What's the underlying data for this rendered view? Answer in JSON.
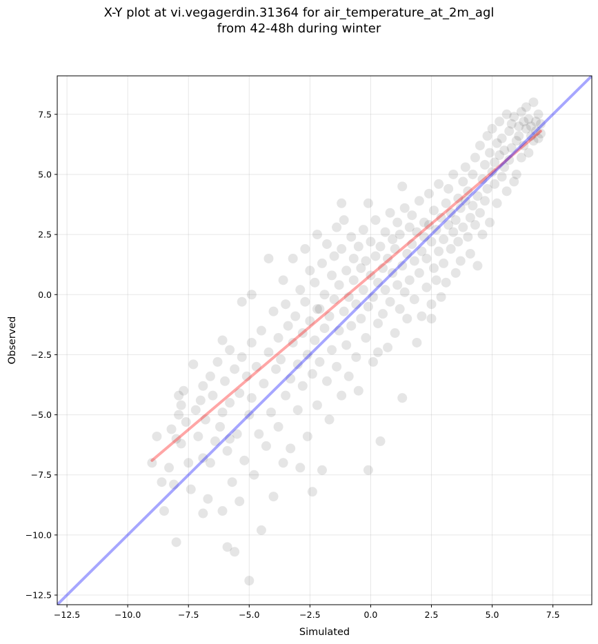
{
  "chart_data": {
    "type": "scatter",
    "title": "X-Y plot at vi.vegagerdin.31364 for air_temperature_at_2m_agl",
    "subtitle": "from 42-48h during winter",
    "xlabel": "Simulated",
    "ylabel": "Observed",
    "xlim": [
      -12.9,
      9.1
    ],
    "ylim": [
      -12.9,
      9.1
    ],
    "grid": true,
    "x_ticks": [
      -12.5,
      -10.0,
      -7.5,
      -5.0,
      -2.5,
      0.0,
      2.5,
      5.0,
      7.5
    ],
    "y_ticks": [
      -12.5,
      -10.0,
      -7.5,
      -5.0,
      -2.5,
      0.0,
      2.5,
      5.0,
      7.5
    ],
    "x_tick_labels": [
      "−12.5",
      "−10.0",
      "−7.5",
      "−5.0",
      "−2.5",
      "0.0",
      "2.5",
      "5.0",
      "7.5"
    ],
    "y_tick_labels": [
      "−12.5",
      "−10.0",
      "−7.5",
      "−5.0",
      "−2.5",
      "0.0",
      "2.5",
      "5.0",
      "7.5"
    ],
    "series": [
      {
        "kind": "scatter",
        "color": "#000000",
        "opacity": 0.1,
        "points": [
          [
            -9.0,
            -7.0
          ],
          [
            -8.8,
            -5.9
          ],
          [
            -8.6,
            -7.8
          ],
          [
            -8.5,
            -9.0
          ],
          [
            -8.3,
            -7.2
          ],
          [
            -8.2,
            -5.6
          ],
          [
            -8.1,
            -7.9
          ],
          [
            -8.0,
            -10.3
          ],
          [
            -8.0,
            -6.0
          ],
          [
            -7.9,
            -5.0
          ],
          [
            -7.8,
            -4.6
          ],
          [
            -7.8,
            -6.2
          ],
          [
            -7.7,
            -4.0
          ],
          [
            -7.6,
            -5.3
          ],
          [
            -7.5,
            -7.0
          ],
          [
            -7.4,
            -8.1
          ],
          [
            -7.3,
            -2.9
          ],
          [
            -7.2,
            -4.8
          ],
          [
            -7.1,
            -5.9
          ],
          [
            -7.0,
            -4.4
          ],
          [
            -6.9,
            -6.8
          ],
          [
            -6.9,
            -3.8
          ],
          [
            -6.8,
            -5.2
          ],
          [
            -6.7,
            -8.5
          ],
          [
            -6.6,
            -7.0
          ],
          [
            -6.6,
            -3.4
          ],
          [
            -6.5,
            -4.2
          ],
          [
            -6.4,
            -6.1
          ],
          [
            -6.3,
            -2.8
          ],
          [
            -6.2,
            -5.5
          ],
          [
            -6.1,
            -9.0
          ],
          [
            -6.1,
            -4.9
          ],
          [
            -6.0,
            -3.6
          ],
          [
            -5.9,
            -6.5
          ],
          [
            -5.8,
            -2.3
          ],
          [
            -5.8,
            -4.5
          ],
          [
            -5.7,
            -7.8
          ],
          [
            -5.6,
            -10.7
          ],
          [
            -5.6,
            -3.1
          ],
          [
            -5.5,
            -5.8
          ],
          [
            -5.4,
            -4.1
          ],
          [
            -5.4,
            -8.6
          ],
          [
            -5.3,
            -2.6
          ],
          [
            -5.2,
            -6.9
          ],
          [
            -5.1,
            -3.4
          ],
          [
            -5.0,
            -11.9
          ],
          [
            -5.0,
            -5.0
          ],
          [
            -4.9,
            -2.0
          ],
          [
            -4.9,
            -4.3
          ],
          [
            -4.8,
            -7.5
          ],
          [
            -4.7,
            -3.0
          ],
          [
            -4.6,
            -5.8
          ],
          [
            -4.5,
            -1.5
          ],
          [
            -4.5,
            -9.8
          ],
          [
            -4.4,
            -3.7
          ],
          [
            -4.3,
            -6.3
          ],
          [
            -4.2,
            -2.4
          ],
          [
            -4.1,
            -4.9
          ],
          [
            -4.0,
            -0.7
          ],
          [
            -4.0,
            -8.4
          ],
          [
            -3.9,
            -3.1
          ],
          [
            -3.8,
            -1.8
          ],
          [
            -3.8,
            -5.5
          ],
          [
            -3.7,
            -2.7
          ],
          [
            -3.6,
            -7.0
          ],
          [
            -3.5,
            -0.4
          ],
          [
            -3.5,
            -4.2
          ],
          [
            -3.4,
            -1.3
          ],
          [
            -3.3,
            -3.5
          ],
          [
            -3.3,
            -6.4
          ],
          [
            -3.2,
            1.5
          ],
          [
            -3.2,
            -2.0
          ],
          [
            -3.1,
            -0.9
          ],
          [
            -3.0,
            -4.8
          ],
          [
            -3.0,
            -2.9
          ],
          [
            -2.9,
            0.2
          ],
          [
            -2.9,
            -7.2
          ],
          [
            -2.8,
            -1.6
          ],
          [
            -2.8,
            -3.8
          ],
          [
            -2.7,
            1.9
          ],
          [
            -2.7,
            -0.3
          ],
          [
            -2.6,
            -2.5
          ],
          [
            -2.6,
            -5.9
          ],
          [
            -2.5,
            -1.1
          ],
          [
            -2.5,
            1.0
          ],
          [
            -2.4,
            -3.3
          ],
          [
            -2.4,
            -8.2
          ],
          [
            -2.3,
            0.5
          ],
          [
            -2.3,
            -1.9
          ],
          [
            -2.2,
            -4.6
          ],
          [
            -2.2,
            2.5
          ],
          [
            -2.1,
            -0.6
          ],
          [
            -2.1,
            -2.8
          ],
          [
            -2.0,
            1.3
          ],
          [
            -2.0,
            -7.3
          ],
          [
            -1.9,
            -1.4
          ],
          [
            -1.9,
            0.0
          ],
          [
            -1.8,
            -3.6
          ],
          [
            -1.8,
            2.1
          ],
          [
            -1.7,
            -0.9
          ],
          [
            -1.7,
            -5.2
          ],
          [
            -1.6,
            0.8
          ],
          [
            -1.6,
            -2.3
          ],
          [
            -1.5,
            1.6
          ],
          [
            -1.5,
            -0.2
          ],
          [
            -1.4,
            -3.0
          ],
          [
            -1.4,
            2.8
          ],
          [
            -1.3,
            -1.5
          ],
          [
            -1.3,
            0.4
          ],
          [
            -1.2,
            -4.2
          ],
          [
            -1.2,
            1.9
          ],
          [
            -1.1,
            -0.7
          ],
          [
            -1.1,
            3.1
          ],
          [
            -1.0,
            -2.1
          ],
          [
            -1.0,
            1.0
          ],
          [
            -0.9,
            -0.1
          ],
          [
            -0.9,
            -3.4
          ],
          [
            -0.8,
            2.4
          ],
          [
            -0.8,
            -1.3
          ],
          [
            -0.7,
            0.6
          ],
          [
            -0.7,
            1.5
          ],
          [
            -0.6,
            -2.6
          ],
          [
            -0.6,
            -0.4
          ],
          [
            -0.5,
            2.0
          ],
          [
            -0.5,
            -4.0
          ],
          [
            -0.4,
            1.1
          ],
          [
            -0.4,
            -1.0
          ],
          [
            -0.3,
            0.2
          ],
          [
            -0.3,
            2.7
          ],
          [
            -0.2,
            -1.8
          ],
          [
            -0.2,
            1.4
          ],
          [
            -0.1,
            -0.5
          ],
          [
            -0.1,
            -7.3
          ],
          [
            0.0,
            0.8
          ],
          [
            0.0,
            2.2
          ],
          [
            0.1,
            -2.8
          ],
          [
            0.1,
            -0.1
          ],
          [
            0.2,
            1.6
          ],
          [
            0.2,
            3.1
          ],
          [
            0.3,
            -1.2
          ],
          [
            0.3,
            0.5
          ],
          [
            0.4,
            2.0
          ],
          [
            0.4,
            -6.1
          ],
          [
            0.5,
            1.1
          ],
          [
            0.5,
            -0.8
          ],
          [
            0.6,
            2.6
          ],
          [
            0.6,
            0.2
          ],
          [
            0.7,
            -2.2
          ],
          [
            0.7,
            1.5
          ],
          [
            0.8,
            3.4
          ],
          [
            0.8,
            -0.3
          ],
          [
            0.9,
            0.9
          ],
          [
            0.9,
            2.3
          ],
          [
            1.0,
            -1.6
          ],
          [
            1.0,
            1.9
          ],
          [
            1.1,
            0.4
          ],
          [
            1.1,
            3.0
          ],
          [
            1.2,
            -0.6
          ],
          [
            1.2,
            2.5
          ],
          [
            1.3,
            1.2
          ],
          [
            1.3,
            -4.3
          ],
          [
            1.4,
            0.1
          ],
          [
            1.4,
            3.6
          ],
          [
            1.5,
            1.7
          ],
          [
            1.5,
            -1.0
          ],
          [
            1.6,
            2.8
          ],
          [
            1.6,
            0.6
          ],
          [
            1.7,
            2.1
          ],
          [
            1.7,
            3.3
          ],
          [
            1.8,
            -0.2
          ],
          [
            1.8,
            1.4
          ],
          [
            1.9,
            2.6
          ],
          [
            1.9,
            -2.0
          ],
          [
            2.0,
            0.9
          ],
          [
            2.0,
            3.9
          ],
          [
            2.1,
            1.8
          ],
          [
            2.1,
            -0.9
          ],
          [
            2.2,
            2.4
          ],
          [
            2.2,
            3.0
          ],
          [
            2.3,
            0.3
          ],
          [
            2.3,
            1.5
          ],
          [
            2.4,
            2.9
          ],
          [
            2.4,
            4.2
          ],
          [
            2.5,
            -0.4
          ],
          [
            2.5,
            2.2
          ],
          [
            2.6,
            1.1
          ],
          [
            2.6,
            3.5
          ],
          [
            2.7,
            0.6
          ],
          [
            2.7,
            2.7
          ],
          [
            2.8,
            1.8
          ],
          [
            2.8,
            4.6
          ],
          [
            2.9,
            -0.1
          ],
          [
            2.9,
            3.2
          ],
          [
            3.0,
            2.3
          ],
          [
            3.0,
            1.3
          ],
          [
            3.1,
            3.8
          ],
          [
            3.1,
            0.5
          ],
          [
            3.2,
            2.9
          ],
          [
            3.2,
            4.4
          ],
          [
            3.3,
            1.9
          ],
          [
            3.3,
            3.4
          ],
          [
            3.4,
            2.6
          ],
          [
            3.4,
            5.0
          ],
          [
            3.5,
            0.9
          ],
          [
            3.5,
            3.1
          ],
          [
            3.6,
            4.0
          ],
          [
            3.6,
            2.2
          ],
          [
            3.7,
            3.6
          ],
          [
            3.7,
            1.4
          ],
          [
            3.8,
            4.7
          ],
          [
            3.8,
            2.8
          ],
          [
            3.9,
            3.9
          ],
          [
            3.9,
            5.3
          ],
          [
            4.0,
            2.4
          ],
          [
            4.0,
            4.3
          ],
          [
            4.1,
            3.2
          ],
          [
            4.1,
            1.7
          ],
          [
            4.2,
            5.0
          ],
          [
            4.2,
            3.7
          ],
          [
            4.3,
            2.9
          ],
          [
            4.3,
            5.7
          ],
          [
            4.4,
            4.1
          ],
          [
            4.4,
            1.2
          ],
          [
            4.5,
            3.4
          ],
          [
            4.5,
            6.2
          ],
          [
            4.6,
            4.8
          ],
          [
            4.6,
            2.5
          ],
          [
            4.7,
            5.4
          ],
          [
            4.7,
            3.9
          ],
          [
            4.8,
            6.6
          ],
          [
            4.8,
            4.4
          ],
          [
            4.9,
            5.9
          ],
          [
            4.9,
            3.0
          ],
          [
            5.0,
            5.1
          ],
          [
            5.0,
            6.9
          ],
          [
            5.1,
            4.6
          ],
          [
            5.1,
            5.5
          ],
          [
            5.2,
            6.3
          ],
          [
            5.2,
            3.8
          ],
          [
            5.3,
            5.8
          ],
          [
            5.3,
            7.2
          ],
          [
            5.4,
            4.9
          ],
          [
            5.4,
            6.5
          ],
          [
            5.5,
            5.3
          ],
          [
            5.5,
            6.0
          ],
          [
            5.6,
            7.5
          ],
          [
            5.6,
            4.3
          ],
          [
            5.7,
            6.8
          ],
          [
            5.7,
            5.6
          ],
          [
            5.8,
            7.1
          ],
          [
            5.8,
            6.1
          ],
          [
            5.9,
            4.7
          ],
          [
            5.9,
            7.4
          ],
          [
            6.0,
            6.4
          ],
          [
            6.0,
            5.0
          ],
          [
            6.1,
            7.0
          ],
          [
            6.1,
            6.6
          ],
          [
            6.2,
            7.6
          ],
          [
            6.2,
            5.7
          ],
          [
            6.3,
            7.2
          ],
          [
            6.3,
            6.2
          ],
          [
            6.4,
            7.8
          ],
          [
            6.4,
            6.9
          ],
          [
            6.5,
            5.9
          ],
          [
            6.5,
            7.3
          ],
          [
            6.6,
            6.6
          ],
          [
            6.6,
            7.0
          ],
          [
            6.7,
            8.0
          ],
          [
            6.7,
            6.4
          ],
          [
            6.8,
            7.2
          ],
          [
            6.8,
            6.8
          ],
          [
            6.9,
            7.5
          ],
          [
            6.9,
            6.5
          ],
          [
            7.0,
            7.1
          ],
          [
            7.0,
            6.7
          ],
          [
            -4.2,
            1.5
          ],
          [
            -3.6,
            0.6
          ],
          [
            -2.2,
            -0.6
          ],
          [
            -1.2,
            3.8
          ],
          [
            -0.1,
            3.8
          ],
          [
            0.3,
            -2.4
          ],
          [
            1.3,
            4.5
          ],
          [
            2.5,
            -1.0
          ],
          [
            -6.1,
            -1.9
          ],
          [
            -5.3,
            -0.3
          ],
          [
            -4.9,
            0.0
          ],
          [
            -7.9,
            -4.2
          ],
          [
            -6.9,
            -9.1
          ],
          [
            -5.9,
            -10.5
          ],
          [
            -5.8,
            -6.0
          ]
        ]
      },
      {
        "kind": "line",
        "name": "",
        "color": "#ff0000",
        "opacity": 0.35,
        "x": [
          -9.0,
          7.0
        ],
        "y": [
          -6.9,
          6.8
        ]
      },
      {
        "kind": "line",
        "name": "",
        "color": "#0000ff",
        "opacity": 0.35,
        "x": [
          -12.9,
          9.1
        ],
        "y": [
          -12.9,
          9.1
        ]
      }
    ]
  }
}
